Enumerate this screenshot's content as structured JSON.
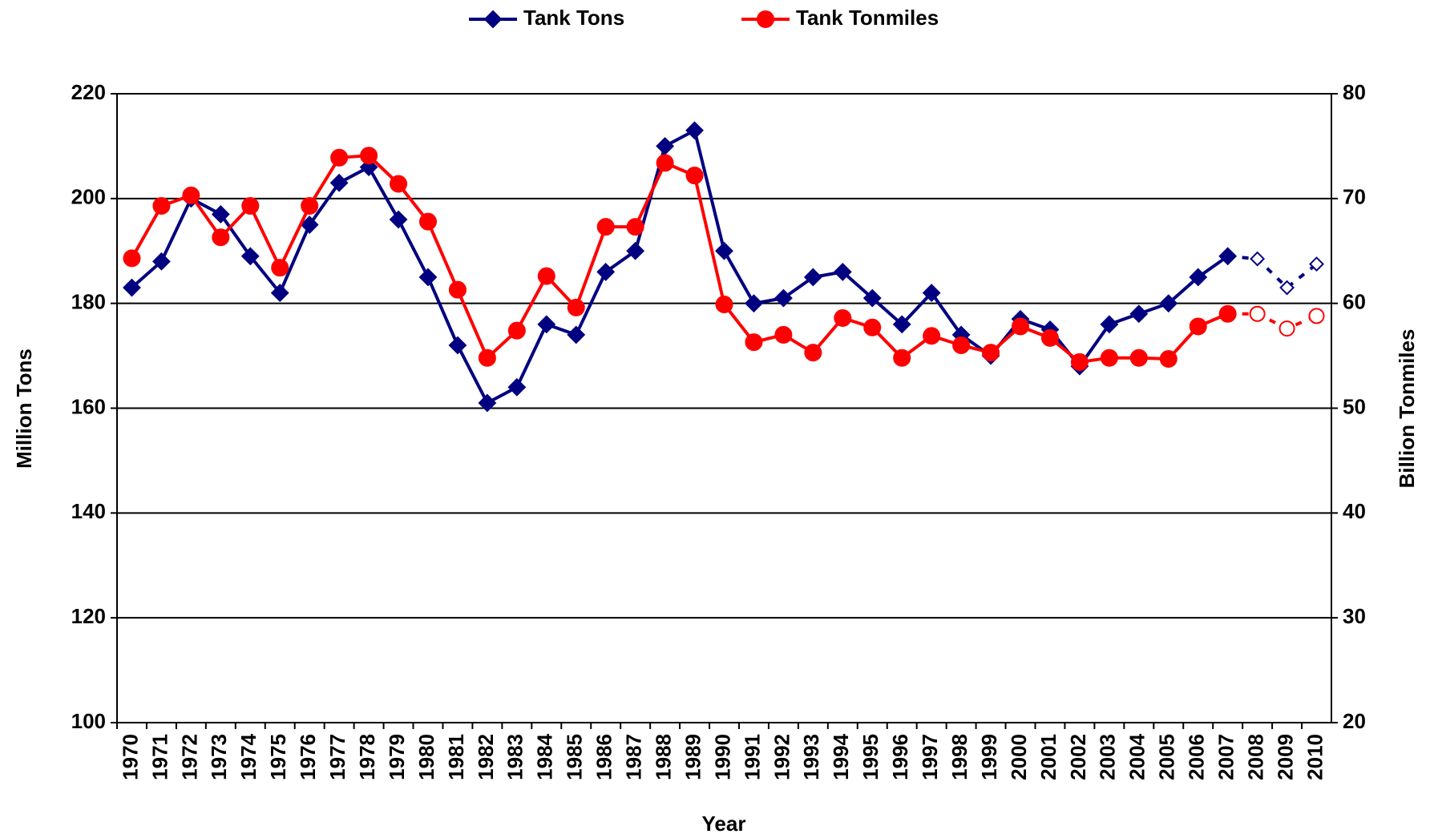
{
  "chart_data": {
    "type": "line",
    "x_label": "Year",
    "y_label": "Million Tons",
    "y2_label": "Billion Tonmiles",
    "categories": [
      "1970",
      "1971",
      "1972",
      "1973",
      "1974",
      "1975",
      "1976",
      "1977",
      "1978",
      "1979",
      "1980",
      "1981",
      "1982",
      "1983",
      "1984",
      "1985",
      "1986",
      "1987",
      "1988",
      "1989",
      "1990",
      "1991",
      "1992",
      "1993",
      "1994",
      "1995",
      "1996",
      "1997",
      "1998",
      "1999",
      "2000",
      "2001",
      "2002",
      "2003",
      "2004",
      "2005",
      "2006",
      "2007",
      "2008",
      "2009",
      "2010"
    ],
    "projected": [
      false,
      false,
      false,
      false,
      false,
      false,
      false,
      false,
      false,
      false,
      false,
      false,
      false,
      false,
      false,
      false,
      false,
      false,
      false,
      false,
      false,
      false,
      false,
      false,
      false,
      false,
      false,
      false,
      false,
      false,
      false,
      false,
      false,
      false,
      false,
      false,
      false,
      false,
      true,
      true,
      true
    ],
    "series": [
      {
        "name": "Tank Tons",
        "color": "#000080",
        "marker": "diamond",
        "values": [
          183,
          188,
          200,
          197,
          189,
          182,
          195,
          203,
          206,
          196,
          185,
          172,
          161,
          164,
          176,
          174,
          186,
          190,
          210,
          213,
          190,
          180,
          181,
          185,
          186,
          181,
          176,
          182,
          174,
          170,
          177,
          175,
          168,
          176,
          178,
          180,
          185,
          189,
          188.5,
          183,
          187.5
        ]
      },
      {
        "name": "Tank Tonmiles",
        "color": "#ff0000",
        "marker": "circle",
        "axis": "y2",
        "values": [
          64.3,
          69.3,
          70.3,
          66.3,
          69.3,
          63.4,
          69.3,
          73.9,
          74.1,
          71.4,
          67.8,
          61.3,
          54.8,
          57.4,
          62.6,
          59.6,
          67.3,
          67.3,
          73.4,
          72.2,
          59.9,
          56.3,
          57.0,
          55.3,
          58.6,
          57.7,
          54.8,
          56.9,
          56.0,
          55.3,
          57.8,
          56.7,
          54.4,
          54.8,
          54.8,
          54.7,
          57.8,
          59.0,
          59.0,
          57.6,
          58.8
        ]
      }
    ],
    "ylim": [
      100,
      220
    ],
    "yticks": [
      100,
      120,
      140,
      160,
      180,
      200,
      220
    ],
    "y2lim": [
      20,
      80
    ],
    "y2ticks": [
      20,
      30,
      40,
      50,
      60,
      70,
      80
    ],
    "grid": true,
    "legend": "top"
  }
}
